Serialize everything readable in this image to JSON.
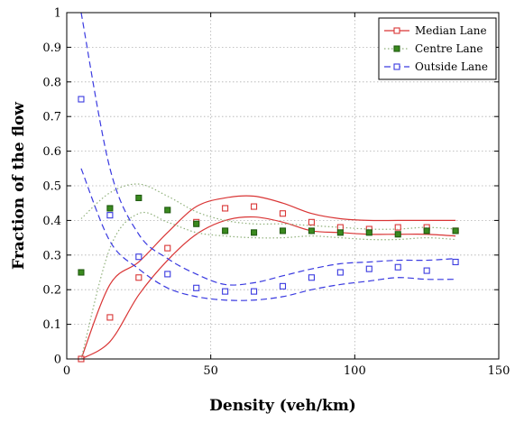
{
  "chart_data": {
    "type": "line",
    "xlabel": "Density (veh/km)",
    "ylabel": "Fraction of the flow",
    "xlim": [
      0,
      150
    ],
    "ylim": [
      0,
      1
    ],
    "xticks": [
      "0",
      "50",
      "100",
      "150"
    ],
    "yticks": [
      "0",
      "0.1",
      "0.2",
      "0.3",
      "0.4",
      "0.5",
      "0.6",
      "0.7",
      "0.8",
      "0.9",
      "1"
    ],
    "grid": true,
    "legend_position": "top-right",
    "series": [
      {
        "name": "Median Lane",
        "color": "#d93535",
        "marker": "square-open",
        "line_style": "solid",
        "x": [
          5,
          15,
          25,
          35,
          45,
          55,
          65,
          75,
          85,
          95,
          105,
          115,
          125,
          135
        ],
        "values": [
          0.0,
          0.12,
          0.235,
          0.32,
          0.395,
          0.435,
          0.44,
          0.42,
          0.395,
          0.38,
          0.375,
          0.38,
          0.38,
          0.37
        ],
        "band_upper": [
          0.0,
          0.215,
          0.28,
          0.365,
          0.44,
          0.465,
          0.47,
          0.45,
          0.42,
          0.405,
          0.4,
          0.4,
          0.4,
          0.4
        ],
        "band_lower": [
          0.0,
          0.05,
          0.185,
          0.285,
          0.36,
          0.4,
          0.41,
          0.395,
          0.37,
          0.365,
          0.36,
          0.36,
          0.36,
          0.355
        ]
      },
      {
        "name": "Centre Lane",
        "color": "#3a8a1e",
        "band_color": "#8fb07a",
        "marker": "square-filled",
        "line_style": "dotted",
        "x": [
          5,
          15,
          25,
          35,
          45,
          55,
          65,
          75,
          85,
          95,
          105,
          115,
          125,
          135
        ],
        "values": [
          0.25,
          0.435,
          0.465,
          0.43,
          0.39,
          0.37,
          0.365,
          0.37,
          0.37,
          0.365,
          0.365,
          0.36,
          0.37,
          0.37
        ],
        "band_upper": [
          0.405,
          0.48,
          0.505,
          0.47,
          0.425,
          0.4,
          0.39,
          0.39,
          0.385,
          0.38,
          0.375,
          0.375,
          0.38,
          0.375
        ],
        "band_lower": [
          0.0,
          0.32,
          0.42,
          0.395,
          0.365,
          0.355,
          0.35,
          0.35,
          0.355,
          0.35,
          0.345,
          0.345,
          0.35,
          0.345
        ]
      },
      {
        "name": "Outside Lane",
        "color": "#3a3ae0",
        "marker": "square-open",
        "line_style": "dashed",
        "x": [
          5,
          15,
          25,
          35,
          45,
          55,
          65,
          75,
          85,
          95,
          105,
          115,
          125,
          135
        ],
        "values": [
          0.75,
          0.415,
          0.295,
          0.245,
          0.205,
          0.195,
          0.195,
          0.21,
          0.235,
          0.25,
          0.26,
          0.265,
          0.255,
          0.28
        ],
        "band_upper": [
          1.0,
          0.55,
          0.36,
          0.29,
          0.245,
          0.215,
          0.22,
          0.24,
          0.26,
          0.275,
          0.28,
          0.285,
          0.285,
          0.29
        ],
        "band_lower": [
          0.55,
          0.34,
          0.26,
          0.205,
          0.18,
          0.17,
          0.17,
          0.18,
          0.2,
          0.215,
          0.225,
          0.235,
          0.23,
          0.23
        ]
      }
    ]
  }
}
